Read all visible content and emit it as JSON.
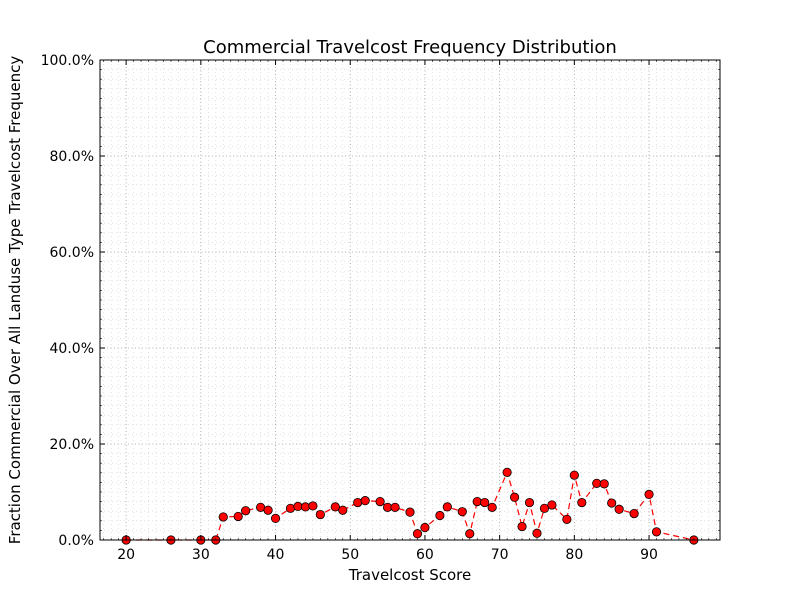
{
  "chart_data": {
    "type": "line",
    "title": "Commercial Travelcost Frequency Distribution",
    "xlabel": "Travelcost Score",
    "ylabel": "Fraction Commercial Over All Landuse Type Travelcost Frequency",
    "xlim": [
      16.5,
      99.5
    ],
    "ylim": [
      0,
      1
    ],
    "x_ticks": [
      20,
      30,
      40,
      50,
      60,
      70,
      80,
      90
    ],
    "x_tick_labels": [
      "20",
      "30",
      "40",
      "50",
      "60",
      "70",
      "80",
      "90"
    ],
    "y_ticks": [
      0,
      0.2,
      0.4,
      0.6,
      0.8,
      1.0
    ],
    "y_tick_labels": [
      "0.0%",
      "20.0%",
      "40.0%",
      "60.0%",
      "80.0%",
      "100.0%"
    ],
    "grid": true,
    "minor_grid": true,
    "series_color": "#ff0000",
    "line_style": "dashed",
    "marker": "circle",
    "series": [
      {
        "name": "",
        "x": [
          20,
          26,
          30,
          32,
          33,
          35,
          36,
          38,
          39,
          40,
          42,
          43,
          44,
          45,
          46,
          48,
          49,
          51,
          52,
          54,
          55,
          56,
          58,
          59,
          60,
          62,
          63,
          65,
          66,
          67,
          68,
          69,
          71,
          72,
          73,
          74,
          75,
          76,
          77,
          79,
          80,
          81,
          83,
          84,
          85,
          86,
          88,
          90,
          91,
          96
        ],
        "y": [
          0.0,
          0.0,
          0.0,
          0.0,
          0.048,
          0.049,
          0.061,
          0.068,
          0.062,
          0.045,
          0.066,
          0.07,
          0.069,
          0.071,
          0.053,
          0.069,
          0.062,
          0.078,
          0.082,
          0.08,
          0.068,
          0.068,
          0.058,
          0.013,
          0.026,
          0.051,
          0.069,
          0.059,
          0.013,
          0.08,
          0.078,
          0.068,
          0.141,
          0.089,
          0.028,
          0.078,
          0.014,
          0.066,
          0.073,
          0.043,
          0.135,
          0.078,
          0.118,
          0.117,
          0.077,
          0.064,
          0.055,
          0.095,
          0.017,
          0.0
        ]
      }
    ]
  }
}
